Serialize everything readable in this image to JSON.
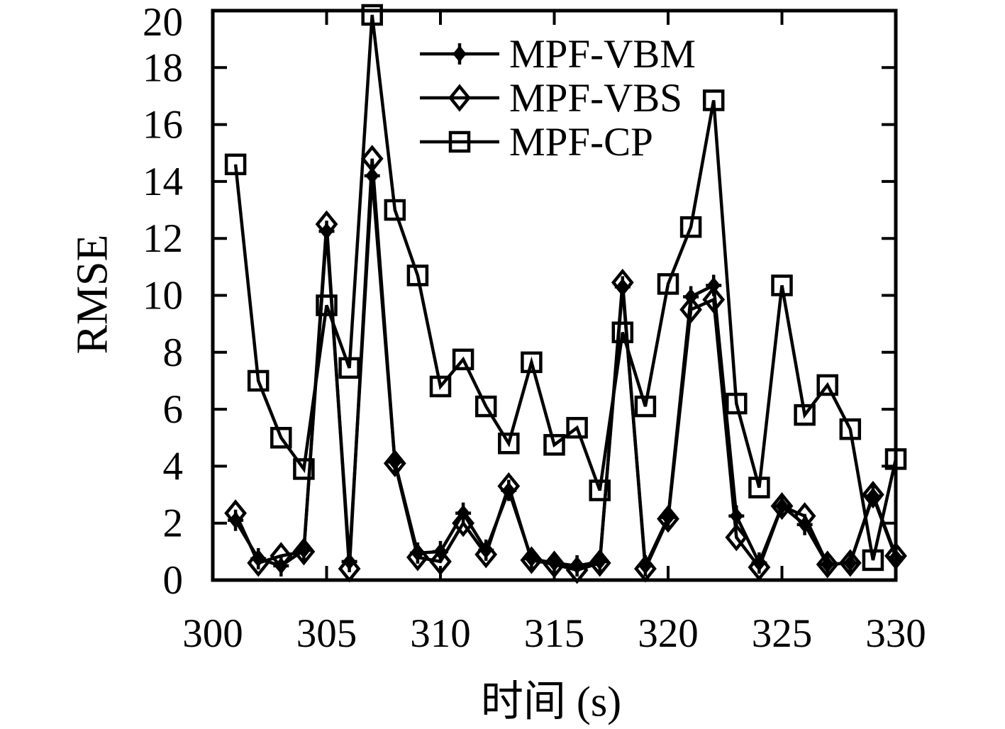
{
  "figure": {
    "background": "#ffffff",
    "ink_color": "#000000"
  },
  "chart_data": {
    "type": "line",
    "title": "",
    "xlabel": "时间 (s)",
    "ylabel": "RMSE",
    "xlim": [
      300,
      330
    ],
    "ylim": [
      0,
      20
    ],
    "xticks": [
      300,
      305,
      310,
      315,
      320,
      325,
      330
    ],
    "yticks": [
      0,
      2,
      4,
      6,
      8,
      10,
      12,
      14,
      16,
      18,
      20
    ],
    "grid": false,
    "legend_position": "inside-top-center",
    "x": [
      301,
      302,
      303,
      304,
      305,
      306,
      307,
      308,
      309,
      310,
      311,
      312,
      313,
      314,
      315,
      316,
      317,
      318,
      319,
      320,
      321,
      322,
      323,
      324,
      325,
      326,
      327,
      328,
      329,
      330
    ],
    "series": [
      {
        "name": "MPF-VBM",
        "marker": "plus-filled-diamond",
        "color": "#000000",
        "values": [
          2.1,
          0.75,
          0.5,
          1.05,
          12.25,
          0.65,
          14.2,
          4.15,
          0.95,
          1.0,
          2.35,
          1.05,
          3.15,
          0.75,
          0.6,
          0.5,
          0.65,
          10.3,
          0.5,
          2.2,
          9.95,
          10.35,
          2.25,
          0.6,
          2.6,
          1.95,
          0.55,
          0.6,
          2.95,
          0.8
        ]
      },
      {
        "name": "MPF-VBS",
        "marker": "open-diamond",
        "color": "#000000",
        "values": [
          2.35,
          0.6,
          0.85,
          1.0,
          12.5,
          0.4,
          14.8,
          4.1,
          0.8,
          0.65,
          2.0,
          0.9,
          3.3,
          0.7,
          0.55,
          0.35,
          0.6,
          10.45,
          0.4,
          2.15,
          9.5,
          9.85,
          1.5,
          0.45,
          2.6,
          2.25,
          0.55,
          0.6,
          3.0,
          0.85
        ]
      },
      {
        "name": "MPF-CP",
        "marker": "open-square",
        "color": "#000000",
        "values": [
          14.6,
          7.0,
          5.0,
          3.9,
          9.65,
          7.45,
          19.85,
          13.0,
          10.7,
          6.8,
          7.75,
          6.1,
          4.8,
          7.65,
          4.75,
          5.35,
          3.15,
          8.7,
          6.1,
          10.4,
          12.4,
          16.85,
          6.2,
          3.25,
          10.35,
          5.8,
          6.85,
          5.3,
          0.7,
          4.25
        ]
      }
    ]
  }
}
